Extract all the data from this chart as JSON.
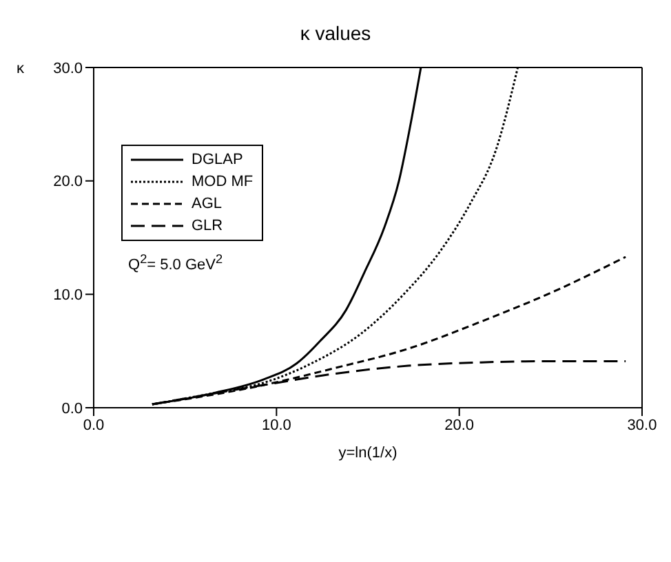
{
  "chart_data": {
    "type": "line",
    "title": "κ values",
    "xlabel": "y=ln(1/x)",
    "ylabel": "κ",
    "annotations": [
      "Q$^{2}$= 5.0 GeV$^{2}$"
    ],
    "xlim": [
      0,
      30
    ],
    "ylim": [
      0,
      30
    ],
    "xticks": [
      {
        "value": 0,
        "label": "0.0"
      },
      {
        "value": 10,
        "label": "10.0"
      },
      {
        "value": 20,
        "label": "20.0"
      },
      {
        "value": 30,
        "label": "30.0"
      }
    ],
    "yticks": [
      {
        "value": 0,
        "label": "0.0"
      },
      {
        "value": 10,
        "label": "10.0"
      },
      {
        "value": 20,
        "label": "20.0"
      },
      {
        "value": 30,
        "label": "30.0"
      }
    ],
    "grid": false,
    "legend": "top left",
    "marker": "none",
    "series": [
      {
        "name": "DGLAP",
        "color": "#000000",
        "line_style": "solid",
        "x": [
          3.2,
          6.6,
          9.3,
          11.1,
          12.4,
          13.8,
          14.8,
          15.9,
          16.7,
          17.3,
          17.9
        ],
        "values": [
          0.3,
          1.3,
          2.5,
          3.9,
          5.9,
          8.6,
          11.9,
          15.9,
          20.0,
          24.7,
          30.0
        ]
      },
      {
        "name": "MOD MF",
        "color": "#000000",
        "line_style": "dotted",
        "x": [
          3.2,
          6.6,
          9.3,
          11.9,
          14.6,
          16.9,
          19.0,
          20.6,
          22.0,
          23.2
        ],
        "values": [
          0.3,
          1.3,
          2.2,
          3.9,
          6.5,
          9.9,
          13.9,
          18.0,
          22.7,
          30.0
        ]
      },
      {
        "name": "AGL",
        "color": "#000000",
        "line_style": "dashed",
        "x": [
          3.2,
          9.3,
          13.2,
          17.2,
          21.2,
          25.1,
          29.1
        ],
        "values": [
          0.3,
          2.0,
          3.5,
          5.2,
          7.6,
          10.2,
          13.3
        ]
      },
      {
        "name": "GLR",
        "color": "#000000",
        "line_style": "dashed",
        "x": [
          3.2,
          9.3,
          13.2,
          17.2,
          21.2,
          25.1,
          29.1
        ],
        "values": [
          0.3,
          2.0,
          3.0,
          3.7,
          4.0,
          4.1,
          4.1
        ]
      }
    ]
  }
}
